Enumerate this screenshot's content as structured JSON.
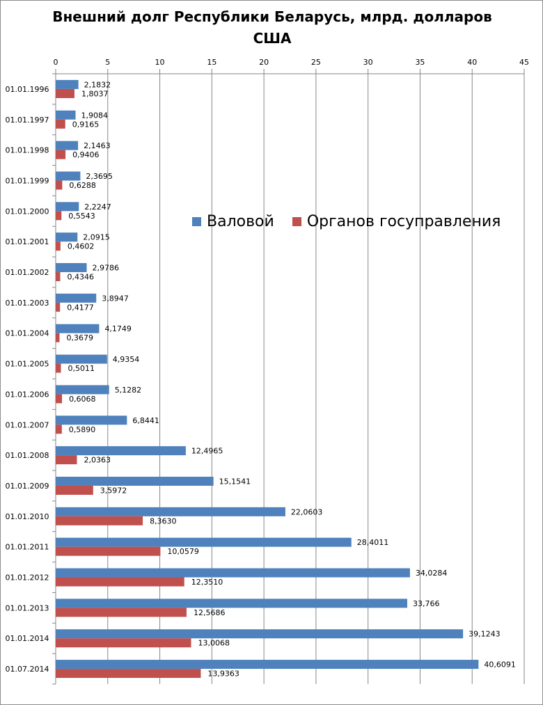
{
  "chart_data": {
    "type": "bar",
    "orientation": "horizontal",
    "title_lines": [
      "Внешний долг Республики Беларусь, млрд. долларов",
      "США"
    ],
    "xlim": [
      0,
      45
    ],
    "x_ticks": [
      "0",
      "5",
      "10",
      "15",
      "20",
      "25",
      "30",
      "35",
      "40",
      "45"
    ],
    "x_axis_position": "top",
    "grid": true,
    "legend_placement": "center-right",
    "categories": [
      "01.01.1996",
      "01.01.1997",
      "01.01.1998",
      "01.01.1999",
      "01.01.2000",
      "01.01.2001",
      "01.01.2002",
      "01.01.2003",
      "01.01.2004",
      "01.01.2005",
      "01.01.2006",
      "01.01.2007",
      "01.01.2008",
      "01.01.2009",
      "01.01.2010",
      "01.01.2011",
      "01.01.2012",
      "01.01.2013",
      "01.01.2014",
      "01.07.2014"
    ],
    "series": [
      {
        "name": "Валовой",
        "color": "#4f81bd",
        "values": [
          2.1832,
          1.9084,
          2.1463,
          2.3695,
          2.2247,
          2.0915,
          2.9786,
          3.8947,
          4.1749,
          4.9354,
          5.1282,
          6.8441,
          12.4965,
          15.1541,
          22.0603,
          28.4011,
          34.0284,
          33.766,
          39.1243,
          40.6091
        ],
        "labels": [
          "2,1832",
          "1,9084",
          "2,1463",
          "2,3695",
          "2,2247",
          "2,0915",
          "2,9786",
          "3,8947",
          "4,1749",
          "4,9354",
          "5,1282",
          "6,8441",
          "12,4965",
          "15,1541",
          "22,0603",
          "28,4011",
          "34,0284",
          "33,766",
          "39,1243",
          "40,6091"
        ]
      },
      {
        "name": "Органов госуправления",
        "color": "#c0504d",
        "values": [
          1.8037,
          0.9165,
          0.9406,
          0.6288,
          0.5543,
          0.4602,
          0.4346,
          0.4177,
          0.3679,
          0.5011,
          0.6068,
          0.589,
          2.0363,
          3.5972,
          8.363,
          10.0579,
          12.351,
          12.5686,
          13.0068,
          13.9363
        ],
        "labels": [
          "1,8037",
          "0,9165",
          "0,9406",
          "0,6288",
          "0,5543",
          "0,4602",
          "0,4346",
          "0,4177",
          "0,3679",
          "0,5011",
          "0,6068",
          "0,5890",
          "2,0363",
          "3,5972",
          "8,3630",
          "10,0579",
          "12,3510",
          "12,5686",
          "13,0068",
          "13,9363"
        ]
      }
    ]
  }
}
